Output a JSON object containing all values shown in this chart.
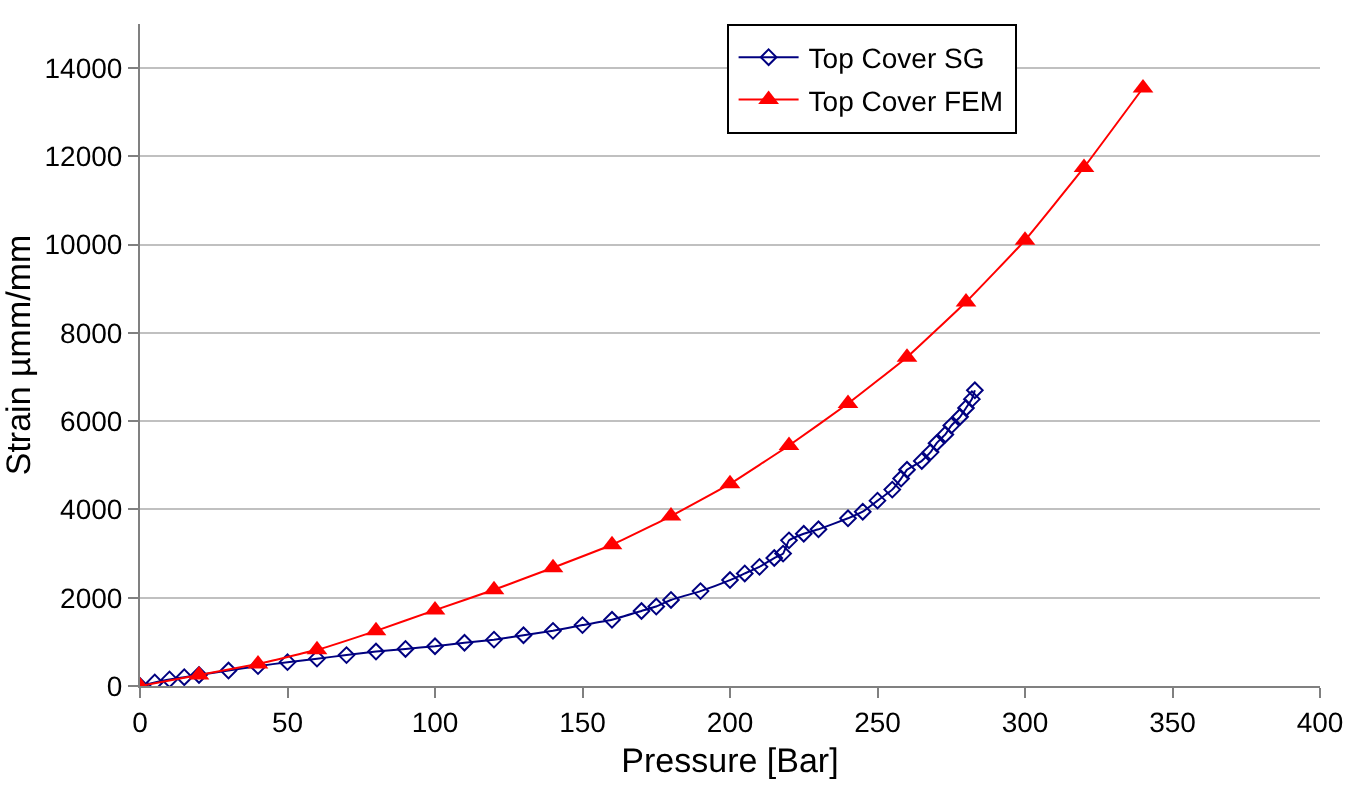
{
  "chart_data": {
    "type": "line",
    "xlabel": "Pressure [Bar]",
    "ylabel": "Strain µmm/mm",
    "xlim": [
      0,
      400
    ],
    "xticks": [
      0,
      50,
      100,
      150,
      200,
      250,
      300,
      350,
      400
    ],
    "ylim": [
      0,
      15000
    ],
    "yticks": [
      0,
      2000,
      4000,
      6000,
      8000,
      10000,
      12000,
      14000
    ],
    "grid": "y",
    "legend": "top",
    "series": [
      {
        "name": "Top Cover SG",
        "color": "#000080",
        "marker": "diamond",
        "x": [
          0,
          5,
          10,
          15,
          20,
          30,
          40,
          50,
          60,
          70,
          80,
          90,
          100,
          110,
          120,
          130,
          140,
          150,
          160,
          170,
          175,
          180,
          190,
          200,
          205,
          210,
          215,
          218,
          220,
          225,
          230,
          240,
          245,
          250,
          255,
          258,
          260,
          265,
          268,
          270,
          273,
          275,
          278,
          280,
          282,
          283
        ],
        "values": [
          0,
          80,
          150,
          200,
          250,
          350,
          450,
          540,
          620,
          700,
          780,
          840,
          900,
          980,
          1050,
          1150,
          1250,
          1380,
          1500,
          1700,
          1800,
          1950,
          2150,
          2400,
          2550,
          2700,
          2900,
          3000,
          3300,
          3450,
          3550,
          3800,
          3950,
          4200,
          4450,
          4700,
          4900,
          5100,
          5300,
          5500,
          5700,
          5900,
          6100,
          6300,
          6500,
          6700
        ]
      },
      {
        "name": "Top Cover FEM",
        "color": "#ff0000",
        "marker": "triangle",
        "x": [
          0,
          20,
          40,
          60,
          80,
          100,
          120,
          140,
          160,
          180,
          200,
          220,
          240,
          260,
          280,
          300,
          320,
          340
        ],
        "values": [
          0,
          250,
          500,
          820,
          1250,
          1720,
          2180,
          2680,
          3200,
          3850,
          4580,
          5450,
          6400,
          7450,
          8700,
          10100,
          11750,
          13550
        ]
      }
    ]
  }
}
